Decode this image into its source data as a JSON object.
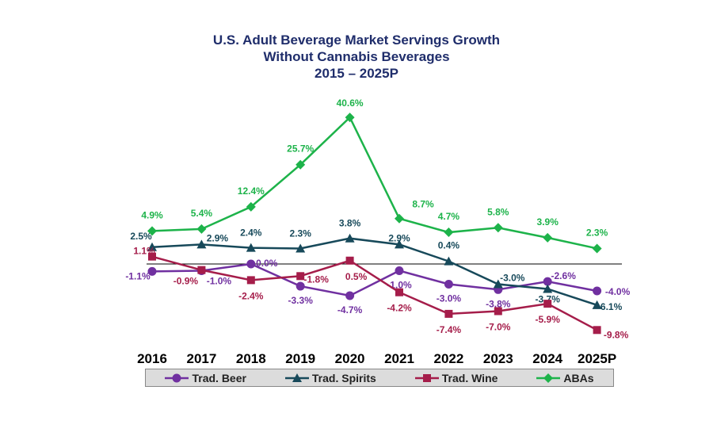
{
  "chart_data": {
    "type": "line",
    "title": [
      "U.S. Adult Beverage Market Servings Growth",
      "Without Cannabis Beverages",
      "2015  –  2025P"
    ],
    "categories": [
      "2016",
      "2017",
      "2018",
      "2019",
      "2020",
      "2021",
      "2022",
      "2023",
      "2024",
      "2025P"
    ],
    "series": [
      {
        "name": "Trad. Beer",
        "color": "#7030a0",
        "marker": "circle",
        "values": [
          -1.1,
          -1.0,
          0.0,
          -3.3,
          -4.7,
          -1.0,
          -3.0,
          -3.8,
          -2.6,
          -4.0
        ],
        "labels": [
          "-1.1%",
          "-1.0%",
          "0.0%",
          "-3.3%",
          "-4.7%",
          "-1.0%",
          "-3.0%",
          "-3.8%",
          "-2.6%",
          "-4.0%"
        ]
      },
      {
        "name": "Trad. Spirits",
        "color": "#17495a",
        "marker": "triangle",
        "values": [
          2.5,
          2.9,
          2.4,
          2.3,
          3.8,
          2.9,
          0.4,
          -3.0,
          -3.7,
          -6.1
        ],
        "labels": [
          "2.5%",
          "2.9%",
          "2.4%",
          "2.3%",
          "3.8%",
          "2.9%",
          "0.4%",
          "-3.0%",
          "-3.7%",
          "-6.1%"
        ]
      },
      {
        "name": "Trad. Wine",
        "color": "#a51d4a",
        "marker": "square",
        "values": [
          1.1,
          -0.9,
          -2.4,
          -1.8,
          0.5,
          -4.2,
          -7.4,
          -7.0,
          -5.9,
          -9.8
        ],
        "labels": [
          "1.1%",
          "-0.9%",
          "-2.4%",
          "-1.8%",
          "0.5%",
          "-4.2%",
          "-7.4%",
          "-7.0%",
          "-5.9%",
          "-9.8%"
        ]
      },
      {
        "name": "ABAs",
        "color": "#1db34a",
        "marker": "diamond",
        "values": [
          4.9,
          5.4,
          12.4,
          25.7,
          40.6,
          8.7,
          4.7,
          5.8,
          3.9,
          2.3
        ],
        "labels": [
          "4.9%",
          "5.4%",
          "12.4%",
          "25.7%",
          "40.6%",
          "8.7%",
          "4.7%",
          "5.8%",
          "3.9%",
          "2.3%"
        ]
      }
    ],
    "legend_position": "bottom",
    "grid": false
  }
}
